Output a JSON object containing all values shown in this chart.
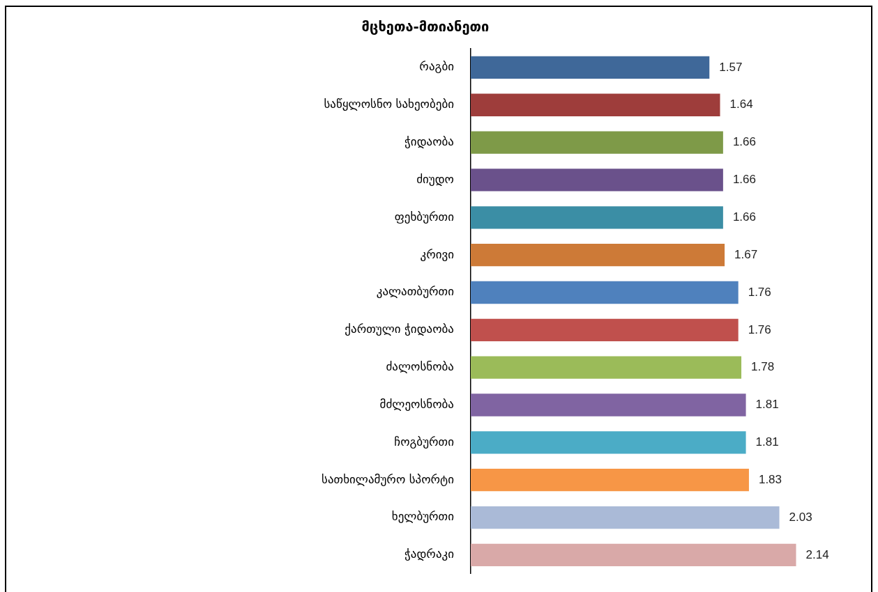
{
  "chart_data": {
    "type": "bar",
    "orientation": "horizontal",
    "title": "მცხეთა-მთიანეთი",
    "categories": [
      "რაგბი",
      "საწყლოსნო სახეობები",
      "ჭიდაობა",
      "ძიუდო",
      "ფეხბურთი",
      "კრივი",
      "კალათბურთი",
      "ქართული ჭიდაობა",
      "ძალოსნობა",
      "მძლეოსნობა",
      "ჩოგბურთი",
      "სათხილამურო სპორტი",
      "ხელბურთი",
      "ჭადრაკი"
    ],
    "values": [
      1.57,
      1.64,
      1.66,
      1.66,
      1.66,
      1.67,
      1.76,
      1.76,
      1.78,
      1.81,
      1.81,
      1.83,
      2.03,
      2.14
    ],
    "colors": [
      "#3f6899",
      "#9e3d3b",
      "#7e9a48",
      "#6a518b",
      "#3b8ea5",
      "#cd7a37",
      "#4f81bd",
      "#c0504d",
      "#9bbb59",
      "#8064a2",
      "#4bacc6",
      "#f79646",
      "#aabad7",
      "#d9a9a8"
    ],
    "tick_labels": "y",
    "data_labels": true,
    "grid": false,
    "legend": false
  }
}
